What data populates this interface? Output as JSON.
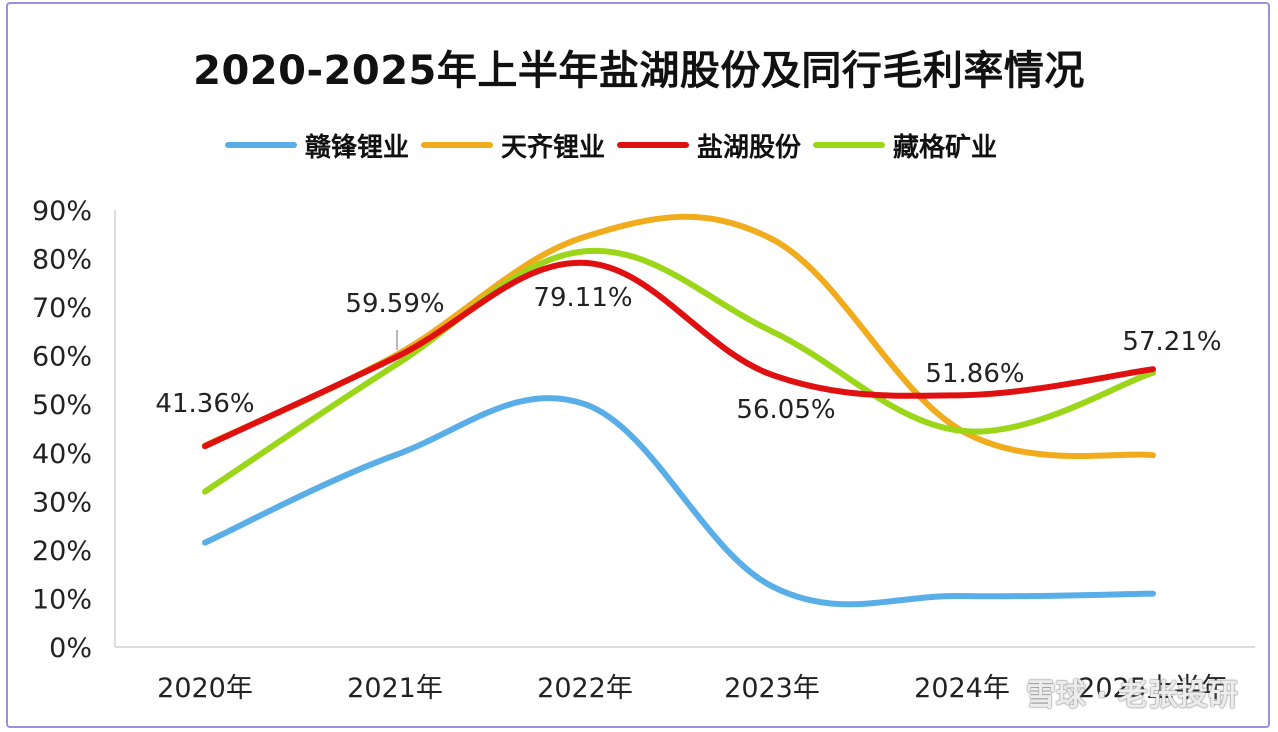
{
  "chart_data": {
    "type": "line",
    "title": "2020-2025年上半年盐湖股份及同行毛利率情况",
    "categories": [
      "2020年",
      "2021年",
      "2022年",
      "2023年",
      "2024年",
      "2025上半年"
    ],
    "ylim": [
      0,
      90
    ],
    "yticks": [
      "0%",
      "10%",
      "20%",
      "30%",
      "40%",
      "50%",
      "60%",
      "70%",
      "80%",
      "90%"
    ],
    "legend_position": "top",
    "series": [
      {
        "name": "赣锋锂业",
        "color": "#5aaee8",
        "values": [
          21.5,
          39.5,
          50,
          12.5,
          10.5,
          11
        ]
      },
      {
        "name": "天齐锂业",
        "color": "#f0ac1c",
        "values": [
          41.5,
          60,
          84.5,
          84,
          44.5,
          39.5
        ]
      },
      {
        "name": "盐湖股份",
        "color": "#e01010",
        "values": [
          41.36,
          59.59,
          79.11,
          56.05,
          51.86,
          57.21
        ]
      },
      {
        "name": "藏格矿业",
        "color": "#9bd619",
        "values": [
          32,
          58,
          81.5,
          65,
          44.5,
          56.5
        ]
      }
    ],
    "data_labels": [
      "41.36%",
      "59.59%",
      "79.11%",
      "56.05%",
      "51.86%",
      "57.21%"
    ]
  },
  "watermark": "雪球 · 老张投研"
}
